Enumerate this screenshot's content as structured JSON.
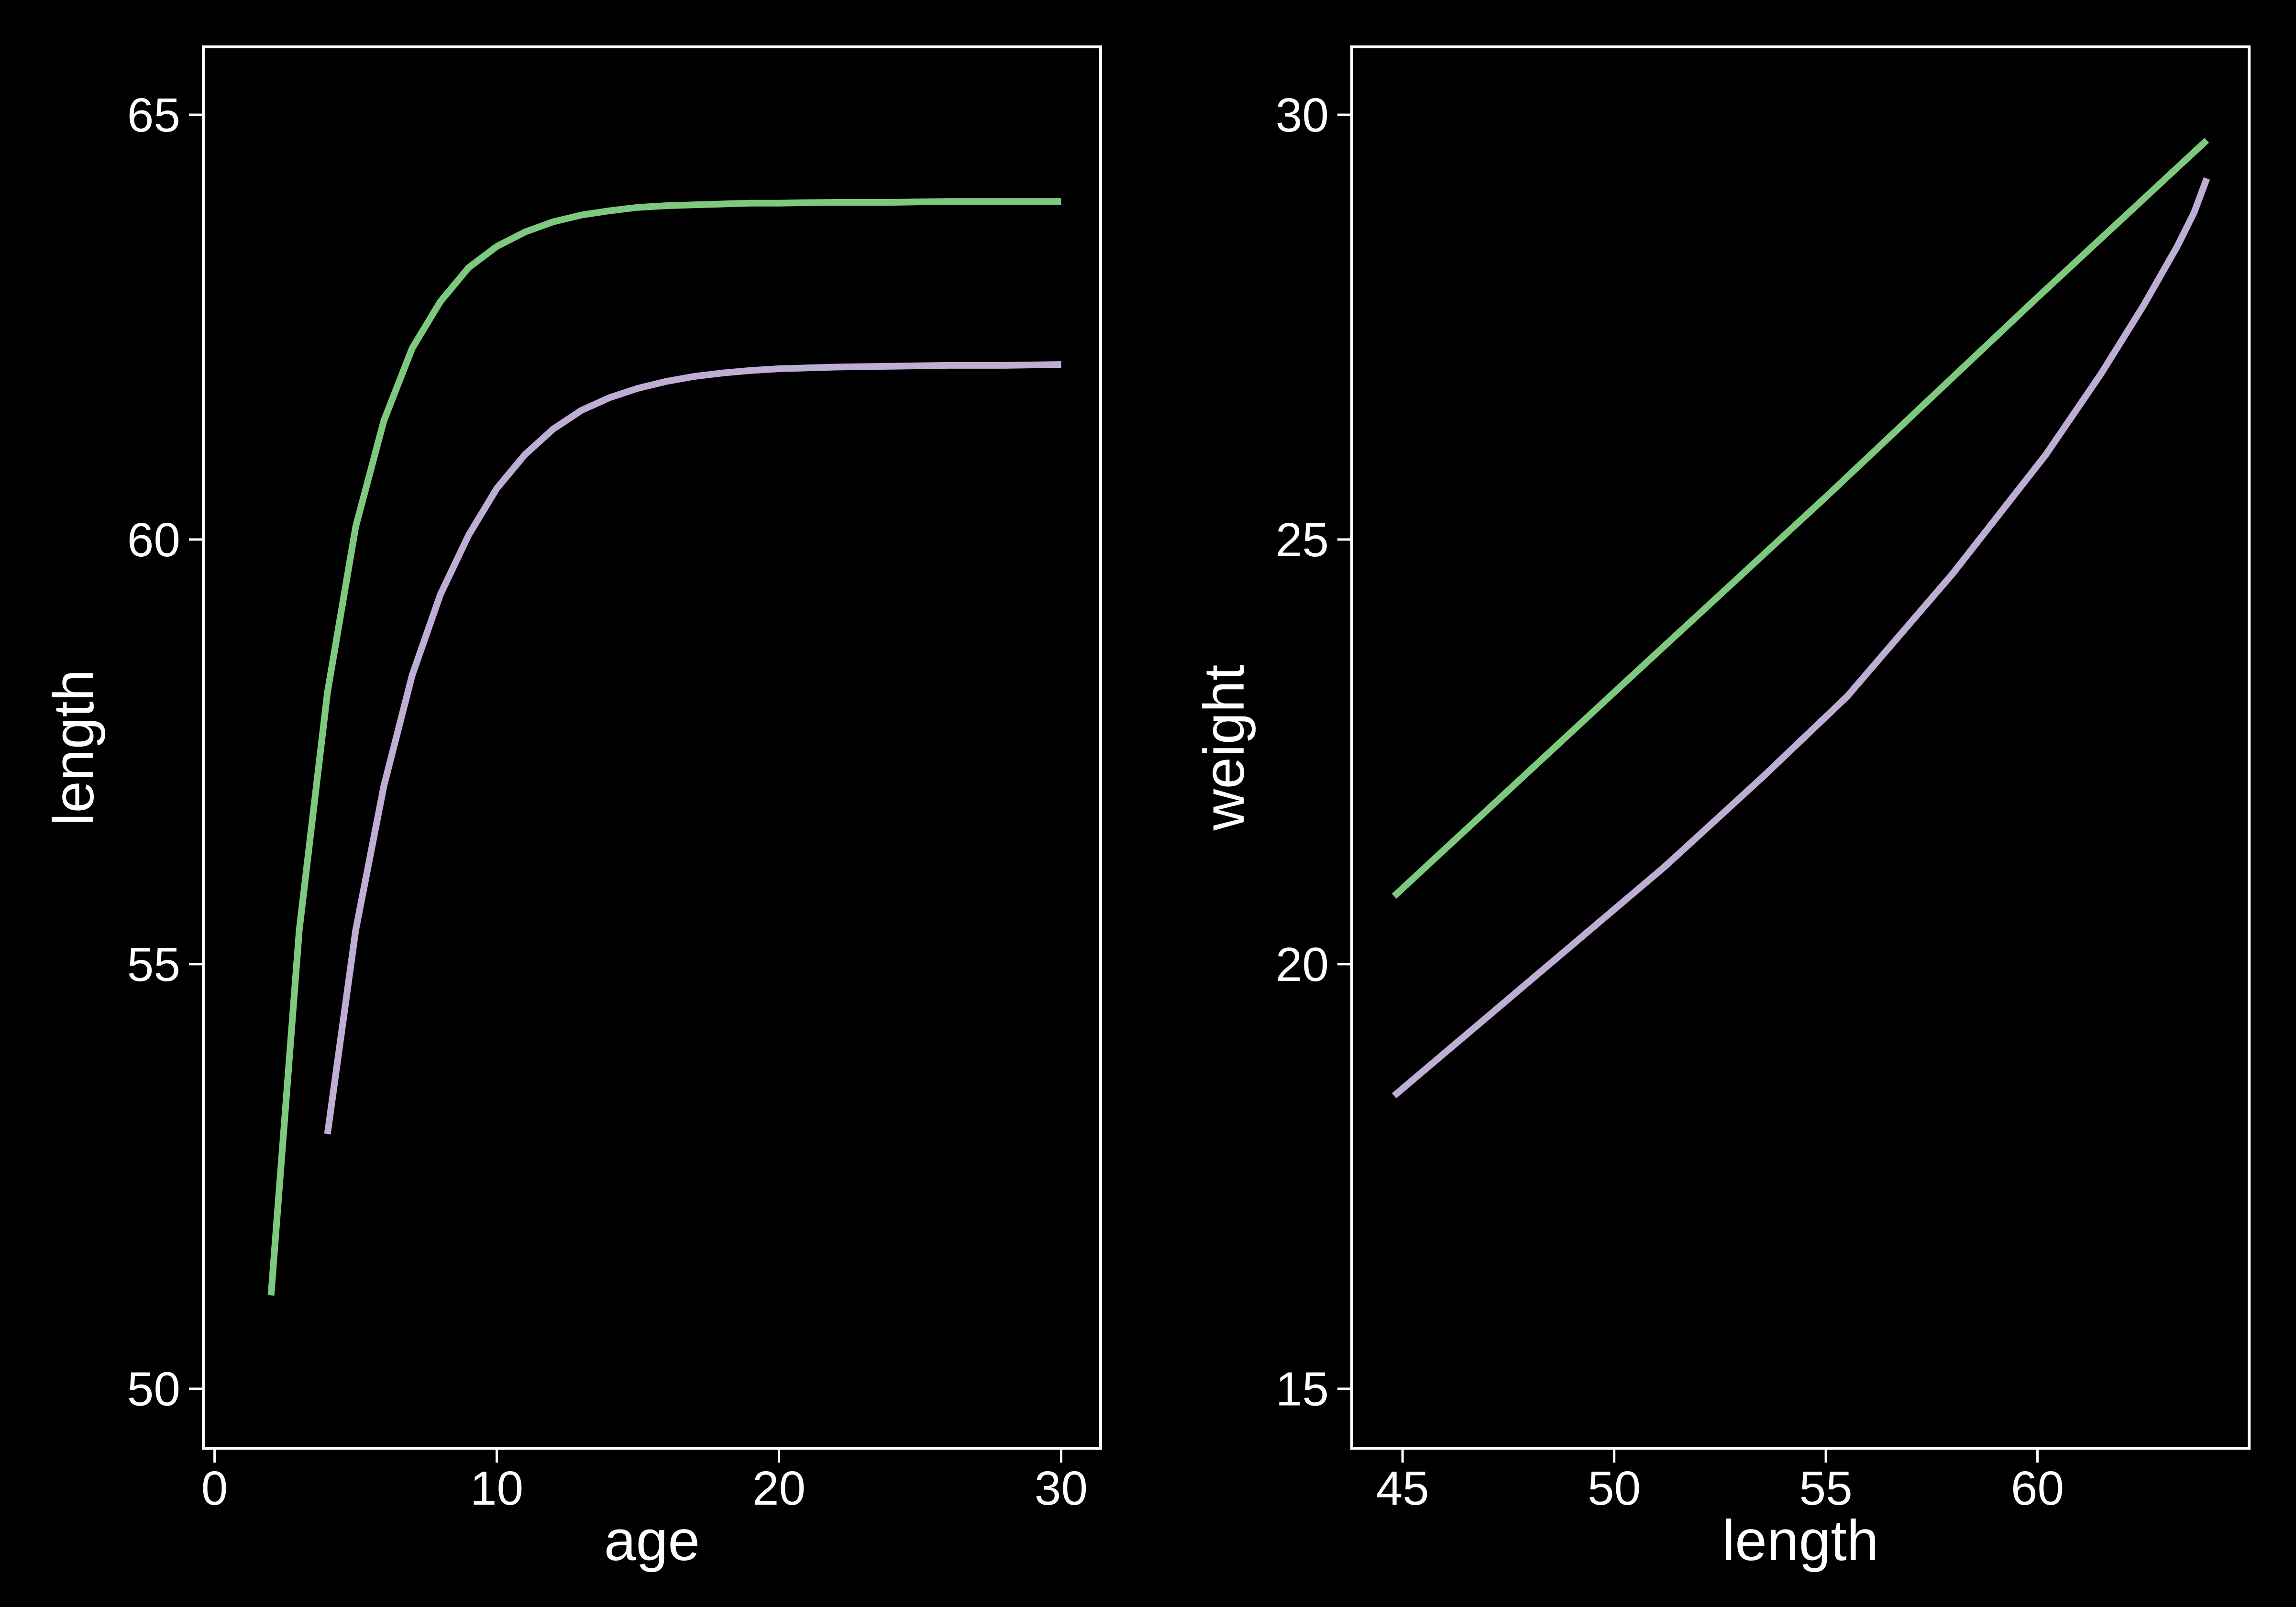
{
  "chart_data": [
    {
      "type": "line",
      "xlabel": "age",
      "ylabel": "length",
      "xlim": [
        -0.4,
        31.4
      ],
      "ylim": [
        49.3,
        65.8
      ],
      "xticks": [
        0,
        10,
        20,
        30
      ],
      "yticks": [
        50,
        55,
        60,
        65
      ],
      "grid": false,
      "series": [
        {
          "color": "#7fc97f",
          "x": [
            2,
            3,
            4,
            5,
            6,
            7,
            8,
            9,
            10,
            11,
            12,
            13,
            14,
            15,
            16,
            17,
            18,
            19,
            20,
            22,
            24,
            26,
            28,
            30
          ],
          "y": [
            51.1,
            55.4,
            58.2,
            60.15,
            61.4,
            62.25,
            62.8,
            63.2,
            63.45,
            63.62,
            63.74,
            63.82,
            63.87,
            63.91,
            63.93,
            63.94,
            63.95,
            63.96,
            63.96,
            63.97,
            63.97,
            63.98,
            63.98,
            63.98
          ]
        },
        {
          "color": "#beaed4",
          "x": [
            4,
            5,
            6,
            7,
            8,
            9,
            10,
            11,
            12,
            13,
            14,
            15,
            16,
            17,
            18,
            19,
            20,
            22,
            24,
            26,
            28,
            30
          ],
          "y": [
            53.0,
            55.4,
            57.1,
            58.4,
            59.35,
            60.05,
            60.6,
            61.0,
            61.3,
            61.52,
            61.67,
            61.78,
            61.86,
            61.92,
            61.96,
            61.99,
            62.01,
            62.03,
            62.04,
            62.05,
            62.05,
            62.06
          ]
        }
      ]
    },
    {
      "type": "line",
      "xlabel": "length",
      "ylabel": "weight",
      "xlim": [
        43.8,
        65.0
      ],
      "ylim": [
        14.3,
        30.8
      ],
      "xticks": [
        45,
        50,
        55,
        60
      ],
      "yticks": [
        15,
        20,
        25,
        30
      ],
      "grid": false,
      "series": [
        {
          "color": "#7fc97f",
          "x": [
            44.8,
            50,
            55,
            60,
            64
          ],
          "y": [
            20.8,
            23.2,
            25.5,
            27.85,
            29.7
          ]
        },
        {
          "color": "#beaed4",
          "x": [
            44.8,
            48,
            51.2,
            53.5,
            55.5,
            58,
            60.2,
            61.5,
            62.5,
            63.3,
            63.7,
            64.0
          ],
          "y": [
            18.45,
            19.8,
            21.15,
            22.2,
            23.15,
            24.6,
            26.0,
            26.95,
            27.75,
            28.45,
            28.85,
            29.25
          ]
        }
      ]
    }
  ]
}
